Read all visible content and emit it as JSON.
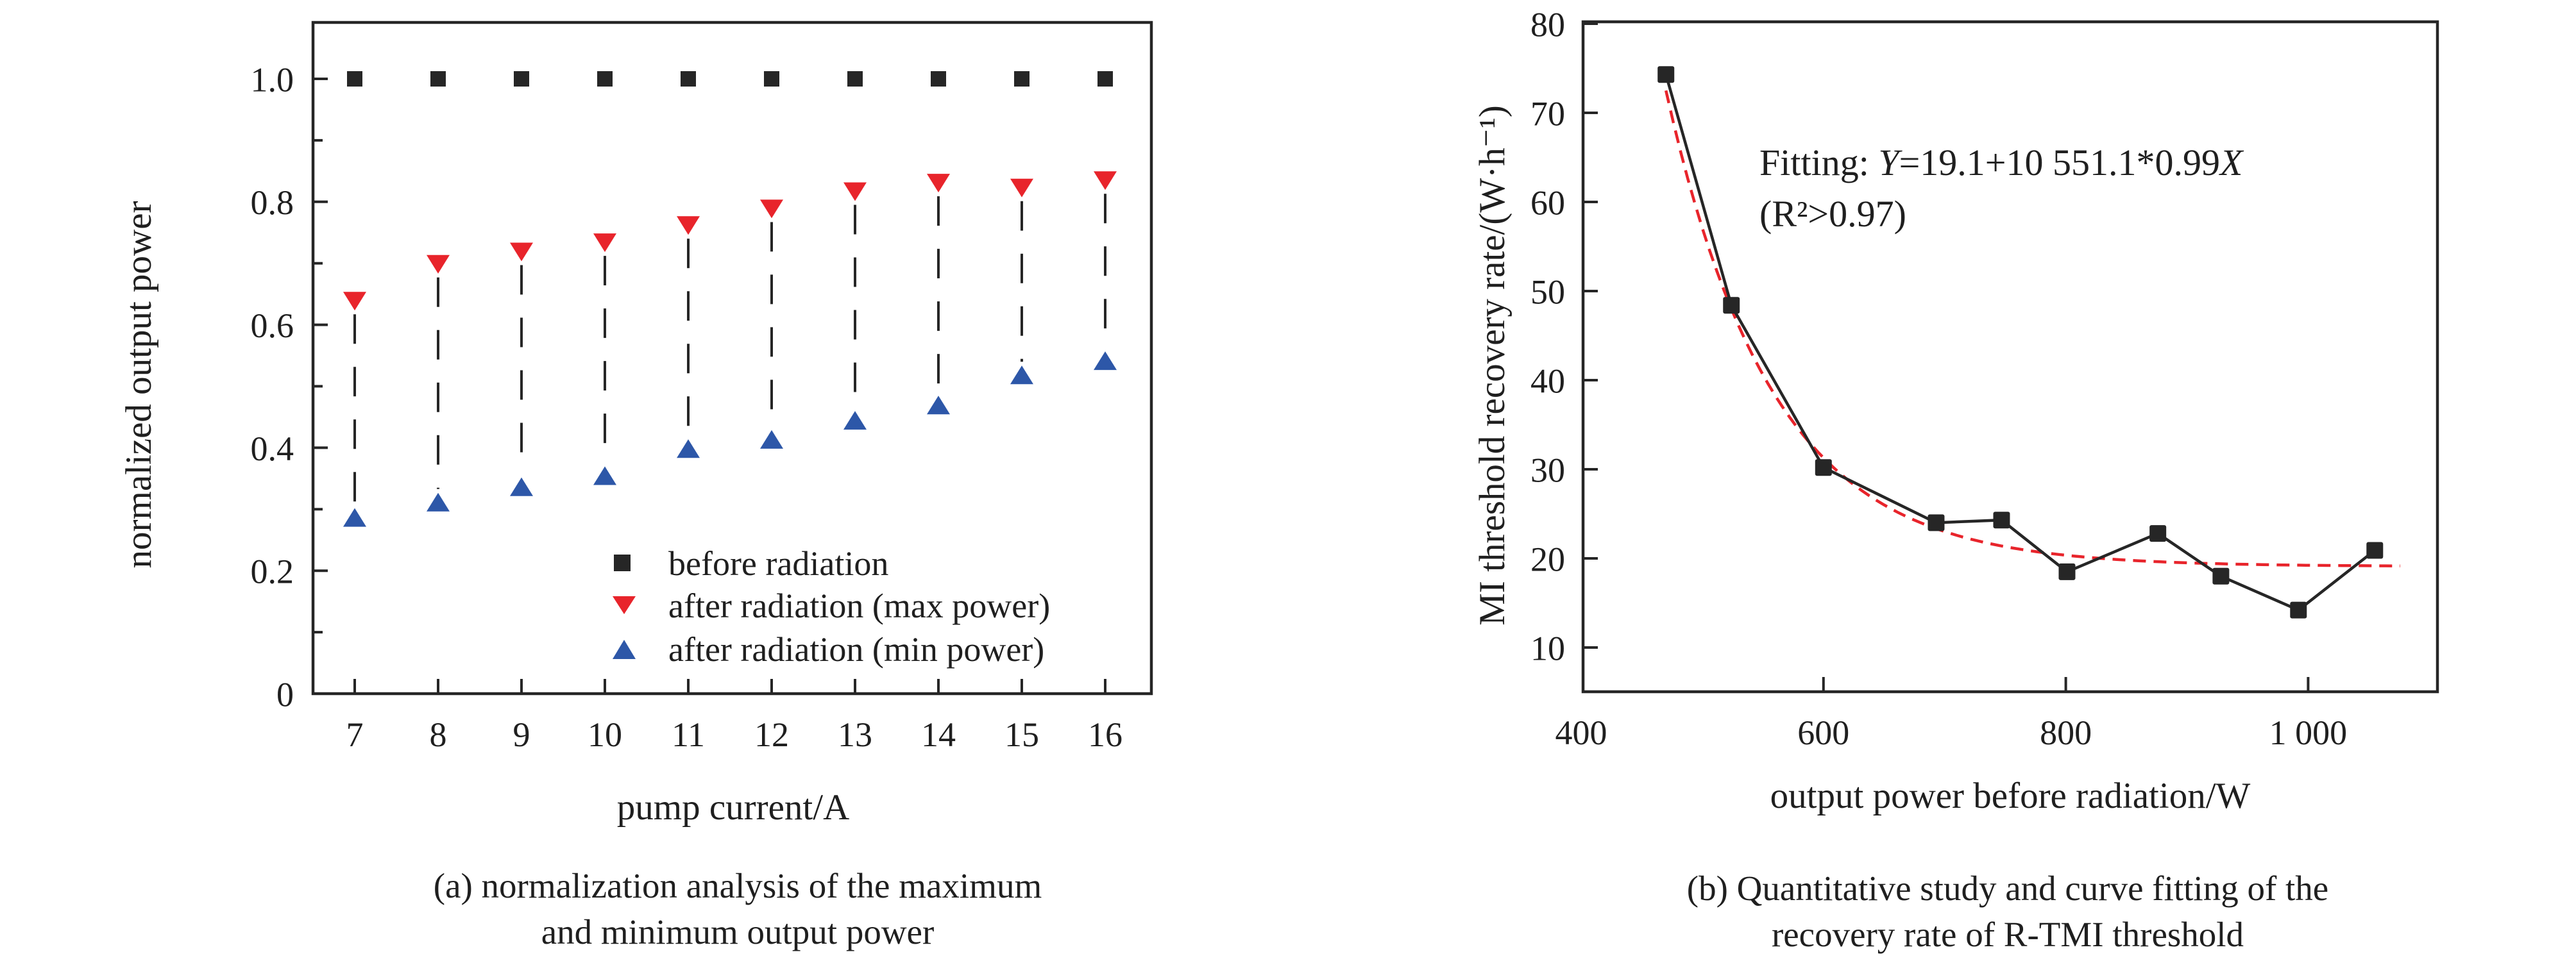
{
  "colors": {
    "axis": "#262626",
    "black_marker": "#262626",
    "red": "#e8242b",
    "blue": "#2d57a8"
  },
  "chart_data": [
    {
      "panel": "a",
      "type": "scatter",
      "title": "",
      "xlabel": "pump current/A",
      "ylabel": "normalized output power",
      "caption": [
        "(a) normalization analysis of the maximum",
        "and minimum output power"
      ],
      "categories": [
        7,
        8,
        9,
        10,
        11,
        12,
        13,
        14,
        15,
        16
      ],
      "xtick_labels": [
        "7",
        "8",
        "9",
        "10",
        "11",
        "12",
        "13",
        "14",
        "15",
        "16"
      ],
      "ylim": [
        0,
        1.09
      ],
      "yticks": {
        "values": [
          0,
          0.2,
          0.4,
          0.6,
          0.8,
          1.0
        ],
        "labels": [
          "0",
          "0.2",
          "0.4",
          "0.6",
          "0.8",
          "1.0"
        ],
        "minor": [
          0.1,
          0.3,
          0.5,
          0.7,
          0.9
        ]
      },
      "grid": false,
      "legend_position": "inside lower right",
      "connectors": "dashed vertical lines between max-power and min-power points",
      "series": [
        {
          "name": "before radiation",
          "marker": "square",
          "color": "#262626",
          "values": [
            1.0,
            1.0,
            1.0,
            1.0,
            1.0,
            1.0,
            1.0,
            1.0,
            1.0,
            1.0
          ]
        },
        {
          "name": "after radiation (max power)",
          "marker": "triangle-down",
          "color": "#e8242b",
          "values": [
            0.64,
            0.7,
            0.72,
            0.735,
            0.763,
            0.79,
            0.818,
            0.832,
            0.824,
            0.836
          ]
        },
        {
          "name": "after radiation (min power)",
          "marker": "triangle-up",
          "color": "#2d57a8",
          "values": [
            0.285,
            0.31,
            0.335,
            0.353,
            0.397,
            0.412,
            0.443,
            0.468,
            0.517,
            0.54
          ]
        }
      ]
    },
    {
      "panel": "b",
      "type": "line",
      "title": "",
      "xlabel": "output power before radiation/W",
      "ylabel": "MI threshold recovery rate/(W·h⁻¹)",
      "caption": [
        "(b) Quantitative study and curve fitting of the",
        "recovery rate of R-TMI threshold"
      ],
      "series_name": "MI threshold recovery rate",
      "marker": "square",
      "color": "#262626",
      "x": [
        470,
        524,
        600,
        693,
        747,
        801,
        876,
        928,
        992,
        1055
      ],
      "y": [
        74.3,
        48.4,
        30.2,
        24.0,
        24.3,
        18.5,
        22.8,
        18.0,
        14.2,
        20.9
      ],
      "xlim": [
        400,
        1107
      ],
      "ylim": [
        5,
        80
      ],
      "xticks": {
        "values": [
          400,
          600,
          800,
          1000
        ],
        "labels": [
          "400",
          "600",
          "800",
          "1 000"
        ]
      },
      "yticks": {
        "values": [
          10,
          20,
          30,
          40,
          50,
          60,
          70,
          80
        ],
        "labels": [
          "10",
          "20",
          "30",
          "40",
          "50",
          "60",
          "70",
          "80"
        ]
      },
      "annotation": {
        "prefix": "Fitting: ",
        "y_var": "Y",
        "body": "=19.1+10 551.1*0.99",
        "x_var": "X",
        "line2": "(R²>0.97)"
      },
      "fit_curve": {
        "style": "dashed",
        "color": "#e8242b",
        "equation": "Y=19.1+10 551.1*0.99^X",
        "draw": {
          "y0": 19.1,
          "amp": 53.4,
          "x0": 470,
          "tau": 88,
          "x_start": 470,
          "x_end": 1078
        }
      }
    }
  ]
}
